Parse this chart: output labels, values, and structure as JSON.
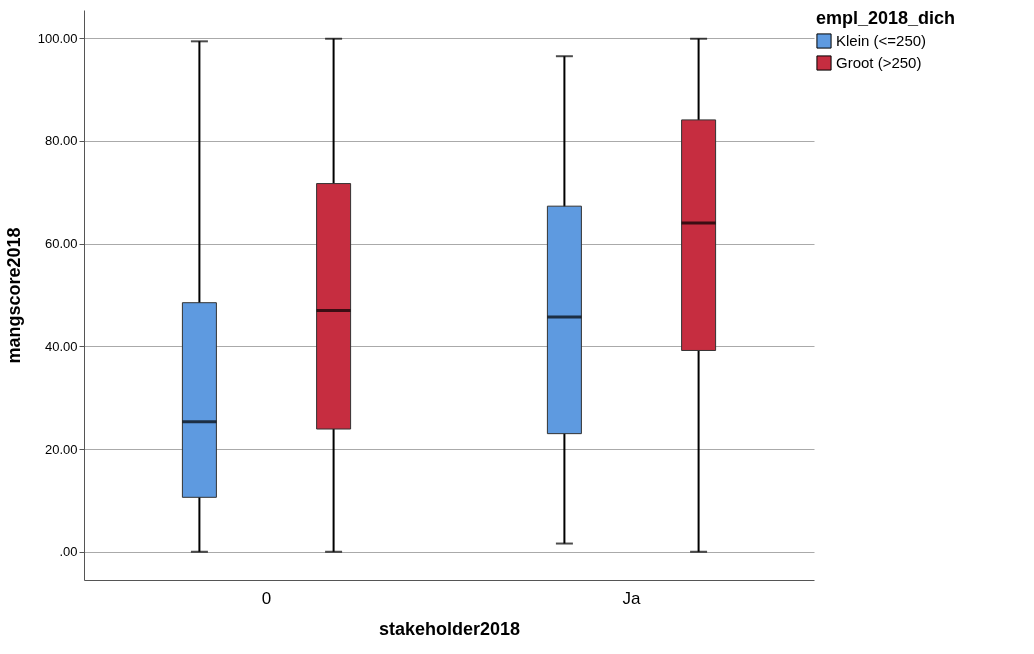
{
  "chart_data": {
    "type": "box",
    "xlabel": "stakeholder2018",
    "ylabel": "mangscore2018",
    "legend_title": "empl_2018_dich",
    "categories": [
      "0",
      "Ja"
    ],
    "series": [
      {
        "name": "Klein (<=250)",
        "color": "#5e9ae0",
        "boxes": [
          {
            "low": 0,
            "q1": 10.6,
            "median": 25.3,
            "q3": 48.5,
            "high": 99.4
          },
          {
            "low": 1.6,
            "q1": 23.0,
            "median": 45.7,
            "q3": 67.3,
            "high": 96.5
          }
        ]
      },
      {
        "name": "Groot (>250)",
        "color": "#c62d40",
        "boxes": [
          {
            "low": 0,
            "q1": 23.9,
            "median": 47.0,
            "q3": 71.7,
            "high": 99.9
          },
          {
            "low": 0,
            "q1": 39.2,
            "median": 64.0,
            "q3": 84.1,
            "high": 99.9
          }
        ]
      }
    ],
    "ylim": [
      -5.5,
      105.5
    ],
    "yticks": [
      {
        "value": 0,
        "label": ".00"
      },
      {
        "value": 20,
        "label": "20.00"
      },
      {
        "value": 40,
        "label": "40.00"
      },
      {
        "value": 60,
        "label": "60.00"
      },
      {
        "value": 80,
        "label": "80.00"
      },
      {
        "value": 100,
        "label": "100.00"
      }
    ],
    "grid": "y",
    "legend": "top right"
  }
}
